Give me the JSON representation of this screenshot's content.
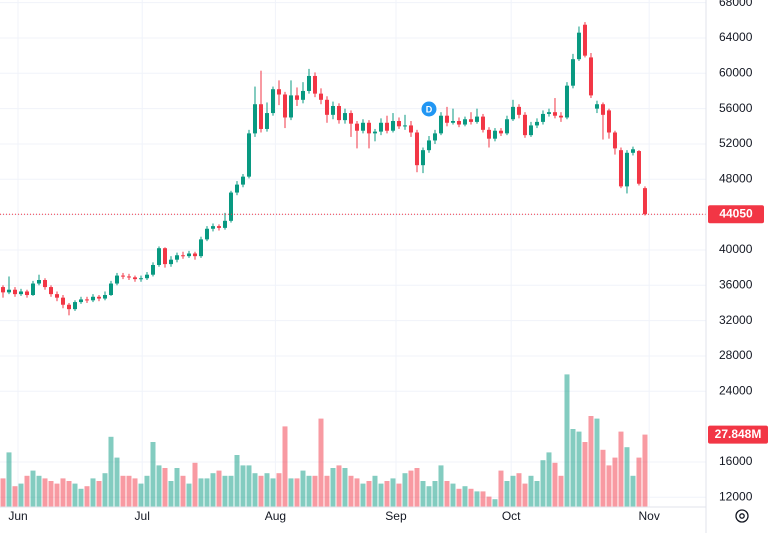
{
  "chart_data": {
    "type": "candlestick",
    "x": [
      0,
      1,
      2,
      3,
      4,
      5,
      6,
      7,
      8,
      9,
      10,
      11,
      12,
      13,
      14,
      15,
      16,
      17,
      18,
      19,
      20,
      21,
      22,
      23,
      24,
      25,
      26,
      27,
      28,
      29,
      30,
      31,
      32,
      33,
      34,
      35,
      36,
      37,
      38,
      39,
      40,
      41,
      42,
      43,
      44,
      45,
      46,
      47,
      48,
      49,
      50,
      51,
      52,
      53,
      54,
      55,
      56,
      57,
      58,
      59,
      60,
      61,
      62,
      63,
      64,
      65,
      66,
      67,
      68,
      69,
      70,
      71,
      72,
      73,
      74,
      75,
      76,
      77,
      78,
      79,
      80,
      81,
      82,
      83,
      84,
      85,
      86,
      87,
      88,
      89,
      90,
      91,
      92,
      93,
      94,
      95,
      96,
      97,
      98,
      99,
      100,
      101,
      102,
      103,
      104,
      105,
      106,
      107
    ],
    "open": [
      35800,
      35200,
      35500,
      35000,
      35300,
      34900,
      36200,
      36600,
      35800,
      35000,
      34600,
      33800,
      33300,
      34100,
      34400,
      34300,
      34700,
      34500,
      34900,
      36200,
      37100,
      37000,
      36900,
      36700,
      36800,
      37200,
      38300,
      40200,
      38400,
      38900,
      39400,
      39300,
      39600,
      39300,
      41200,
      42400,
      42700,
      42500,
      43300,
      46500,
      47400,
      48300,
      53200,
      56500,
      53700,
      55500,
      58200,
      57600,
      55000,
      57500,
      57000,
      58000,
      59700,
      57700,
      57000,
      55300,
      56300,
      54700,
      55500,
      54300,
      53500,
      54400,
      53200,
      53400,
      54400,
      53500,
      54600,
      54000,
      54100,
      53300,
      49600,
      51300,
      52400,
      53200,
      55200,
      54400,
      54600,
      54200,
      54800,
      54500,
      55100,
      53600,
      52600,
      53500,
      53200,
      54800,
      56200,
      55300,
      53000,
      54100,
      54500,
      55400,
      55600,
      55200,
      55000,
      58600,
      61600,
      65500,
      61800,
      56000,
      56500,
      55800,
      53300,
      51300,
      47200,
      51000,
      51200,
      47000
    ],
    "high": [
      36000,
      37000,
      35800,
      35600,
      35500,
      36500,
      37200,
      36800,
      36000,
      35300,
      34900,
      34000,
      34300,
      34700,
      34700,
      35000,
      34900,
      35300,
      36500,
      37400,
      37400,
      37300,
      37100,
      37100,
      37500,
      38600,
      40400,
      40300,
      39300,
      39700,
      39800,
      39900,
      39800,
      41500,
      42700,
      43000,
      42900,
      44200,
      46700,
      47800,
      48600,
      53600,
      58500,
      60300,
      56700,
      58500,
      59200,
      57900,
      59200,
      58400,
      59000,
      60500,
      60100,
      58300,
      57400,
      56800,
      56600,
      56000,
      55800,
      54600,
      54800,
      54700,
      53700,
      54900,
      55200,
      55500,
      55000,
      55300,
      54600,
      53600,
      51600,
      52900,
      53600,
      55600,
      56200,
      56000,
      55000,
      55100,
      55600,
      56000,
      55400,
      53900,
      53800,
      53800,
      55200,
      57000,
      56500,
      55600,
      54500,
      54900,
      55800,
      56000,
      57200,
      55600,
      59000,
      62200,
      65300,
      65800,
      62300,
      56900,
      56700,
      56000,
      53500,
      51600,
      51300,
      51700,
      51300,
      47200
    ],
    "low": [
      34600,
      35000,
      34700,
      34800,
      34600,
      34800,
      36000,
      35500,
      34700,
      34200,
      33400,
      32600,
      33100,
      33900,
      34000,
      34100,
      34200,
      34300,
      34800,
      36000,
      36700,
      36600,
      36400,
      36400,
      36600,
      37000,
      38100,
      38000,
      38100,
      38600,
      39000,
      39100,
      38900,
      39100,
      41000,
      42100,
      42200,
      42300,
      43100,
      46200,
      47100,
      48100,
      52800,
      53300,
      53400,
      55200,
      56400,
      53800,
      54700,
      56300,
      56600,
      57700,
      57300,
      56500,
      54400,
      54800,
      54300,
      54300,
      52800,
      51500,
      53200,
      51500,
      52300,
      53000,
      53200,
      53300,
      53700,
      53600,
      52800,
      48800,
      48700,
      51000,
      52000,
      53000,
      54000,
      54200,
      53900,
      54000,
      54200,
      54300,
      53300,
      51600,
      52300,
      52900,
      53000,
      54600,
      54900,
      52700,
      52800,
      53800,
      54200,
      55100,
      54900,
      54500,
      54800,
      58300,
      61400,
      61800,
      57200,
      55500,
      52500,
      52600,
      50800,
      47000,
      46400,
      50700,
      47300,
      43900
    ],
    "close": [
      35200,
      35500,
      35000,
      35300,
      34900,
      36200,
      36600,
      35800,
      35000,
      34600,
      33800,
      33300,
      34100,
      34400,
      34300,
      34700,
      34500,
      34900,
      36200,
      37100,
      37000,
      36900,
      36700,
      36800,
      37200,
      38300,
      40200,
      38400,
      38900,
      39400,
      39300,
      39600,
      39300,
      41200,
      42400,
      42700,
      42500,
      43300,
      46500,
      47400,
      48300,
      53200,
      56500,
      53700,
      55500,
      58200,
      57600,
      55000,
      57500,
      57000,
      58000,
      59700,
      57700,
      57000,
      55300,
      56300,
      54700,
      55500,
      54300,
      53500,
      54400,
      53200,
      53400,
      54400,
      53500,
      54600,
      54000,
      54100,
      53300,
      49600,
      51300,
      52400,
      53200,
      55200,
      54400,
      54600,
      54200,
      54800,
      54500,
      55100,
      53600,
      52600,
      53500,
      53200,
      54800,
      56200,
      55300,
      53000,
      54100,
      54500,
      55400,
      55600,
      55200,
      55000,
      58600,
      61600,
      64600,
      62000,
      57500,
      56500,
      55300,
      53300,
      51500,
      47200,
      51000,
      51400,
      47500,
      44050
    ],
    "volume": [
      11,
      21,
      8,
      9,
      12,
      14,
      12,
      11,
      10,
      9,
      11,
      10,
      9,
      7,
      8,
      11,
      10,
      13,
      27,
      19,
      12,
      12,
      11,
      9,
      12,
      25,
      16,
      15,
      10,
      15,
      12,
      9,
      17,
      11,
      11,
      13,
      14,
      12,
      12,
      20,
      16,
      16,
      13,
      12,
      13,
      11,
      13,
      31,
      11,
      11,
      14,
      12,
      12,
      34,
      12,
      15,
      16,
      15,
      12,
      11,
      9,
      10,
      12,
      9,
      10,
      11,
      9,
      13,
      14,
      15,
      10,
      8,
      10,
      16,
      10,
      9,
      7,
      8,
      7,
      6,
      6,
      4,
      3,
      14,
      10,
      12,
      13,
      9,
      12,
      10,
      18,
      21,
      17,
      12,
      51,
      30,
      29,
      25,
      35,
      34,
      22,
      16,
      19,
      29,
      23,
      12,
      19,
      27.848
    ],
    "volume_value_label": "27.848M",
    "up_color": "#089981",
    "down_color": "#f23645",
    "xlim": [
      -0.5,
      117.17
    ],
    "xticks": [
      {
        "value": 2.5,
        "label": "Jun"
      },
      {
        "value": 23.2,
        "label": "Jul"
      },
      {
        "value": 45.4,
        "label": "Aug"
      },
      {
        "value": 65.5,
        "label": "Sep"
      },
      {
        "value": 84.7,
        "label": "Oct"
      },
      {
        "value": 107.7,
        "label": "Nov"
      }
    ],
    "ylim": [
      10900,
      68300
    ],
    "yticks": [
      68000,
      64000,
      60000,
      56000,
      52000,
      48000,
      44000,
      40000,
      36000,
      32000,
      28000,
      24000,
      16000,
      12000
    ],
    "y2lim": [
      0,
      195
    ],
    "grid": true,
    "dividend": {
      "label": "D",
      "x": 71
    }
  }
}
